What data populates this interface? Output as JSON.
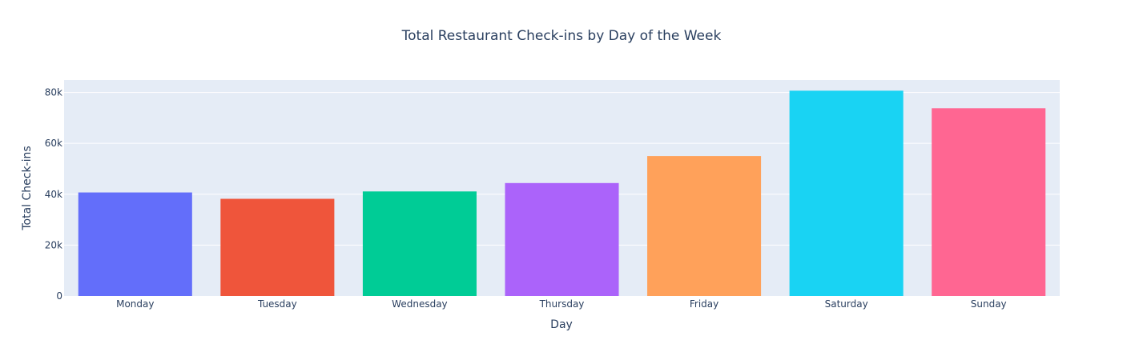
{
  "chart_data": {
    "type": "bar",
    "title": "Total Restaurant Check-ins by Day of the Week",
    "xlabel": "Day",
    "ylabel": "Total Check-ins",
    "categories": [
      "Monday",
      "Tuesday",
      "Wednesday",
      "Thursday",
      "Friday",
      "Saturday",
      "Sunday"
    ],
    "values": [
      40700,
      38200,
      41100,
      44400,
      55000,
      80700,
      73800
    ],
    "colors": [
      "#636efa",
      "#EF553B",
      "#00cc96",
      "#ab63fa",
      "#FFA15A",
      "#19d3f3",
      "#FF6692"
    ],
    "yticks": [
      0,
      20000,
      40000,
      60000,
      80000
    ],
    "ytick_labels": [
      "0",
      "20k",
      "40k",
      "60k",
      "80k"
    ],
    "ylim": [
      0,
      84900
    ],
    "grid": true,
    "plot_background": "#e5ecf6",
    "text_color": "#2a3f5f"
  }
}
